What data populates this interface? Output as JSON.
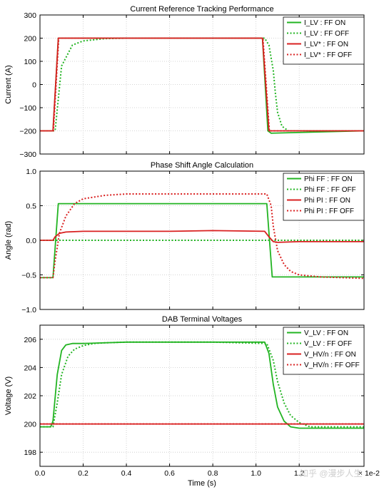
{
  "figure": {
    "xlabel": "Time (s)",
    "x_multiplier_label": "× 1e-2",
    "x_ticks": [
      "0.0",
      "0.2",
      "0.4",
      "0.6",
      "0.8",
      "1.0",
      "1.2"
    ],
    "xlim": [
      0.0,
      1.5
    ],
    "watermark": "知乎 @漫步人生"
  },
  "chart_data": [
    {
      "type": "line",
      "title": "Current Reference Tracking Performance",
      "ylabel": "Current (A)",
      "ylim": [
        -300,
        300
      ],
      "y_ticks": [
        -300,
        -200,
        -100,
        0,
        100,
        200,
        300
      ],
      "grid": true,
      "legend_position": "top-right",
      "series": [
        {
          "name": "I_LV : FF ON",
          "color": "#22b422",
          "style": "solid",
          "x": [
            0,
            0.06,
            0.085,
            1.03,
            1.055,
            1.07,
            1.5
          ],
          "y": [
            -200,
            -200,
            200,
            200,
            -200,
            -210,
            -200
          ]
        },
        {
          "name": "I_LV : FF OFF",
          "color": "#22b422",
          "style": "dotted",
          "x": [
            0,
            0.07,
            0.1,
            0.15,
            0.2,
            0.3,
            0.4,
            1.04,
            1.06,
            1.08,
            1.09,
            1.1,
            1.12,
            1.15,
            1.2,
            1.3,
            1.5
          ],
          "y": [
            -200,
            -200,
            80,
            170,
            188,
            198,
            200,
            200,
            170,
            60,
            -40,
            -120,
            -180,
            -200,
            -200,
            -200,
            -200
          ]
        },
        {
          "name": "I_LV* : FF ON",
          "color": "#d92020",
          "style": "solid",
          "x": [
            0,
            0.06,
            0.085,
            1.03,
            1.06,
            1.5
          ],
          "y": [
            -200,
            -200,
            200,
            200,
            -200,
            -200
          ]
        },
        {
          "name": "I_LV* : FF OFF",
          "color": "#d92020",
          "style": "dotted",
          "x": [
            0,
            0.062,
            0.087,
            1.032,
            1.062,
            1.5
          ],
          "y": [
            -200,
            -200,
            200,
            200,
            -200,
            -200
          ]
        }
      ]
    },
    {
      "type": "line",
      "title": "Phase Shift Angle Calculation",
      "ylabel": "Angle (rad)",
      "ylim": [
        -1.0,
        1.0
      ],
      "y_ticks": [
        "−1.0",
        "−0.5",
        "0.0",
        "0.5",
        "1.0"
      ],
      "grid": true,
      "legend_position": "top-right",
      "series": [
        {
          "name": "Phi FF : FF ON",
          "color": "#22b422",
          "style": "solid",
          "x": [
            0,
            0.06,
            0.085,
            1.05,
            1.075,
            1.5
          ],
          "y": [
            -0.54,
            -0.54,
            0.53,
            0.53,
            -0.53,
            -0.53
          ]
        },
        {
          "name": "Phi FF : FF OFF",
          "color": "#22b422",
          "style": "dotted",
          "x": [
            0,
            1.5
          ],
          "y": [
            0.0,
            0.0
          ]
        },
        {
          "name": "Phi PI : FF ON",
          "color": "#d92020",
          "style": "solid",
          "x": [
            0,
            0.06,
            0.07,
            0.09,
            0.12,
            0.2,
            0.4,
            0.6,
            0.8,
            1.04,
            1.06,
            1.08,
            1.1,
            1.2,
            1.5
          ],
          "y": [
            0.0,
            0.0,
            0.05,
            0.1,
            0.12,
            0.13,
            0.13,
            0.13,
            0.14,
            0.13,
            0.05,
            -0.02,
            -0.03,
            -0.02,
            -0.02
          ]
        },
        {
          "name": "Phi PI : FF OFF",
          "color": "#d92020",
          "style": "dotted",
          "x": [
            0,
            0.06,
            0.07,
            0.09,
            0.12,
            0.16,
            0.2,
            0.3,
            0.4,
            0.6,
            0.8,
            1.05,
            1.07,
            1.08,
            1.1,
            1.13,
            1.16,
            1.2,
            1.3,
            1.5
          ],
          "y": [
            -0.54,
            -0.54,
            -0.3,
            0.1,
            0.35,
            0.53,
            0.6,
            0.65,
            0.67,
            0.67,
            0.67,
            0.67,
            0.5,
            0.2,
            -0.15,
            -0.35,
            -0.45,
            -0.5,
            -0.53,
            -0.55
          ]
        }
      ]
    },
    {
      "type": "line",
      "title": "DAB Terminal Voltages",
      "ylabel": "Voltage (V)",
      "ylim": [
        197,
        207
      ],
      "y_ticks": [
        198,
        200,
        202,
        204,
        206
      ],
      "grid": true,
      "legend_position": "top-right",
      "series": [
        {
          "name": "V_LV : FF ON",
          "color": "#22b422",
          "style": "solid",
          "x": [
            0,
            0.05,
            0.06,
            0.08,
            0.1,
            0.12,
            0.15,
            0.2,
            0.4,
            0.6,
            0.8,
            1.04,
            1.06,
            1.08,
            1.1,
            1.13,
            1.16,
            1.2,
            1.5
          ],
          "y": [
            199.8,
            199.8,
            200.2,
            203.5,
            205.2,
            205.6,
            205.7,
            205.7,
            205.8,
            205.8,
            205.8,
            205.8,
            205.0,
            202.8,
            201.2,
            200.2,
            199.8,
            199.7,
            199.7
          ]
        },
        {
          "name": "V_LV : FF OFF",
          "color": "#22b422",
          "style": "dotted",
          "x": [
            0,
            0.06,
            0.08,
            0.1,
            0.13,
            0.16,
            0.2,
            0.25,
            0.3,
            0.4,
            0.6,
            0.8,
            1.05,
            1.08,
            1.1,
            1.13,
            1.16,
            1.2,
            1.25,
            1.5
          ],
          "y": [
            199.8,
            199.8,
            201.5,
            203.5,
            204.8,
            205.3,
            205.55,
            205.7,
            205.75,
            205.8,
            205.8,
            205.8,
            205.7,
            204.5,
            203.0,
            201.5,
            200.6,
            200.1,
            199.8,
            199.8
          ]
        },
        {
          "name": "V_HV/n : FF ON",
          "color": "#d92020",
          "style": "solid",
          "x": [
            0,
            1.5
          ],
          "y": [
            200.0,
            200.0
          ]
        },
        {
          "name": "V_HV/n : FF OFF",
          "color": "#d92020",
          "style": "dotted",
          "x": [
            0,
            1.5
          ],
          "y": [
            200.0,
            200.0
          ]
        }
      ]
    }
  ]
}
